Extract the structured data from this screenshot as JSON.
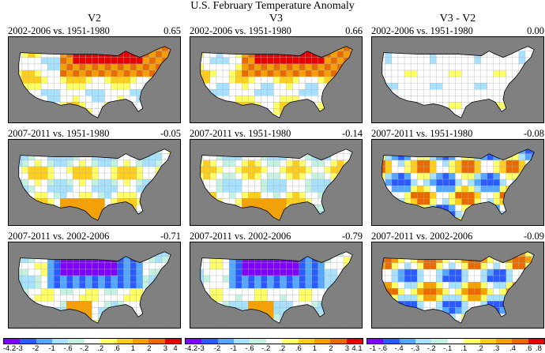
{
  "title": "U.S. February Temperature Anomaly",
  "columns": [
    "V2",
    "V3",
    "V3 - V2"
  ],
  "panels": [
    {
      "caption": "2002-2006 vs. 1951-1980",
      "value": "0.65"
    },
    {
      "caption": "2002-2006 vs. 1951-1980",
      "value": "0.66"
    },
    {
      "caption": "2002-2006 vs. 1951-1980",
      "value": "0.00"
    },
    {
      "caption": "2007-2011 vs. 1951-1980",
      "value": "-0.05"
    },
    {
      "caption": "2007-2011 vs. 1951-1980",
      "value": "-0.14"
    },
    {
      "caption": "2007-2011 vs. 1951-1980",
      "value": "-0.08"
    },
    {
      "caption": "2007-2011 vs. 2002-2006",
      "value": "-0.71"
    },
    {
      "caption": "2007-2011 vs. 2002-2006",
      "value": "-0.79"
    },
    {
      "caption": "2007-2011 vs. 2002-2006",
      "value": "-0.09"
    }
  ],
  "legends": [
    {
      "ticks": [
        "-4.2",
        "-3",
        "-2",
        "-1",
        "-.6",
        "-.2",
        ".2",
        ".6",
        "1",
        "2",
        "3",
        "4"
      ]
    },
    {
      "ticks": [
        "-4.2",
        "-3",
        "-2",
        "-1",
        "-.6",
        "-.2",
        ".2",
        ".6",
        "1",
        "2",
        "3",
        "4.1"
      ]
    },
    {
      "ticks": [
        "-1",
        "-.6",
        "-.4",
        "-.3",
        "-.2",
        "-.1",
        ".1",
        ".2",
        ".3",
        ".4",
        ".6",
        ".8"
      ]
    }
  ],
  "colors": [
    "#7f00ff",
    "#2a5bff",
    "#52a8ff",
    "#a6e1ff",
    "#c4f2e0",
    "#ffffff",
    "#ffff66",
    "#ffce1a",
    "#f5a000",
    "#ea6a00",
    "#e60000",
    "#8c0000"
  ],
  "map_background": "#808080",
  "land_color": "#ffffff"
}
